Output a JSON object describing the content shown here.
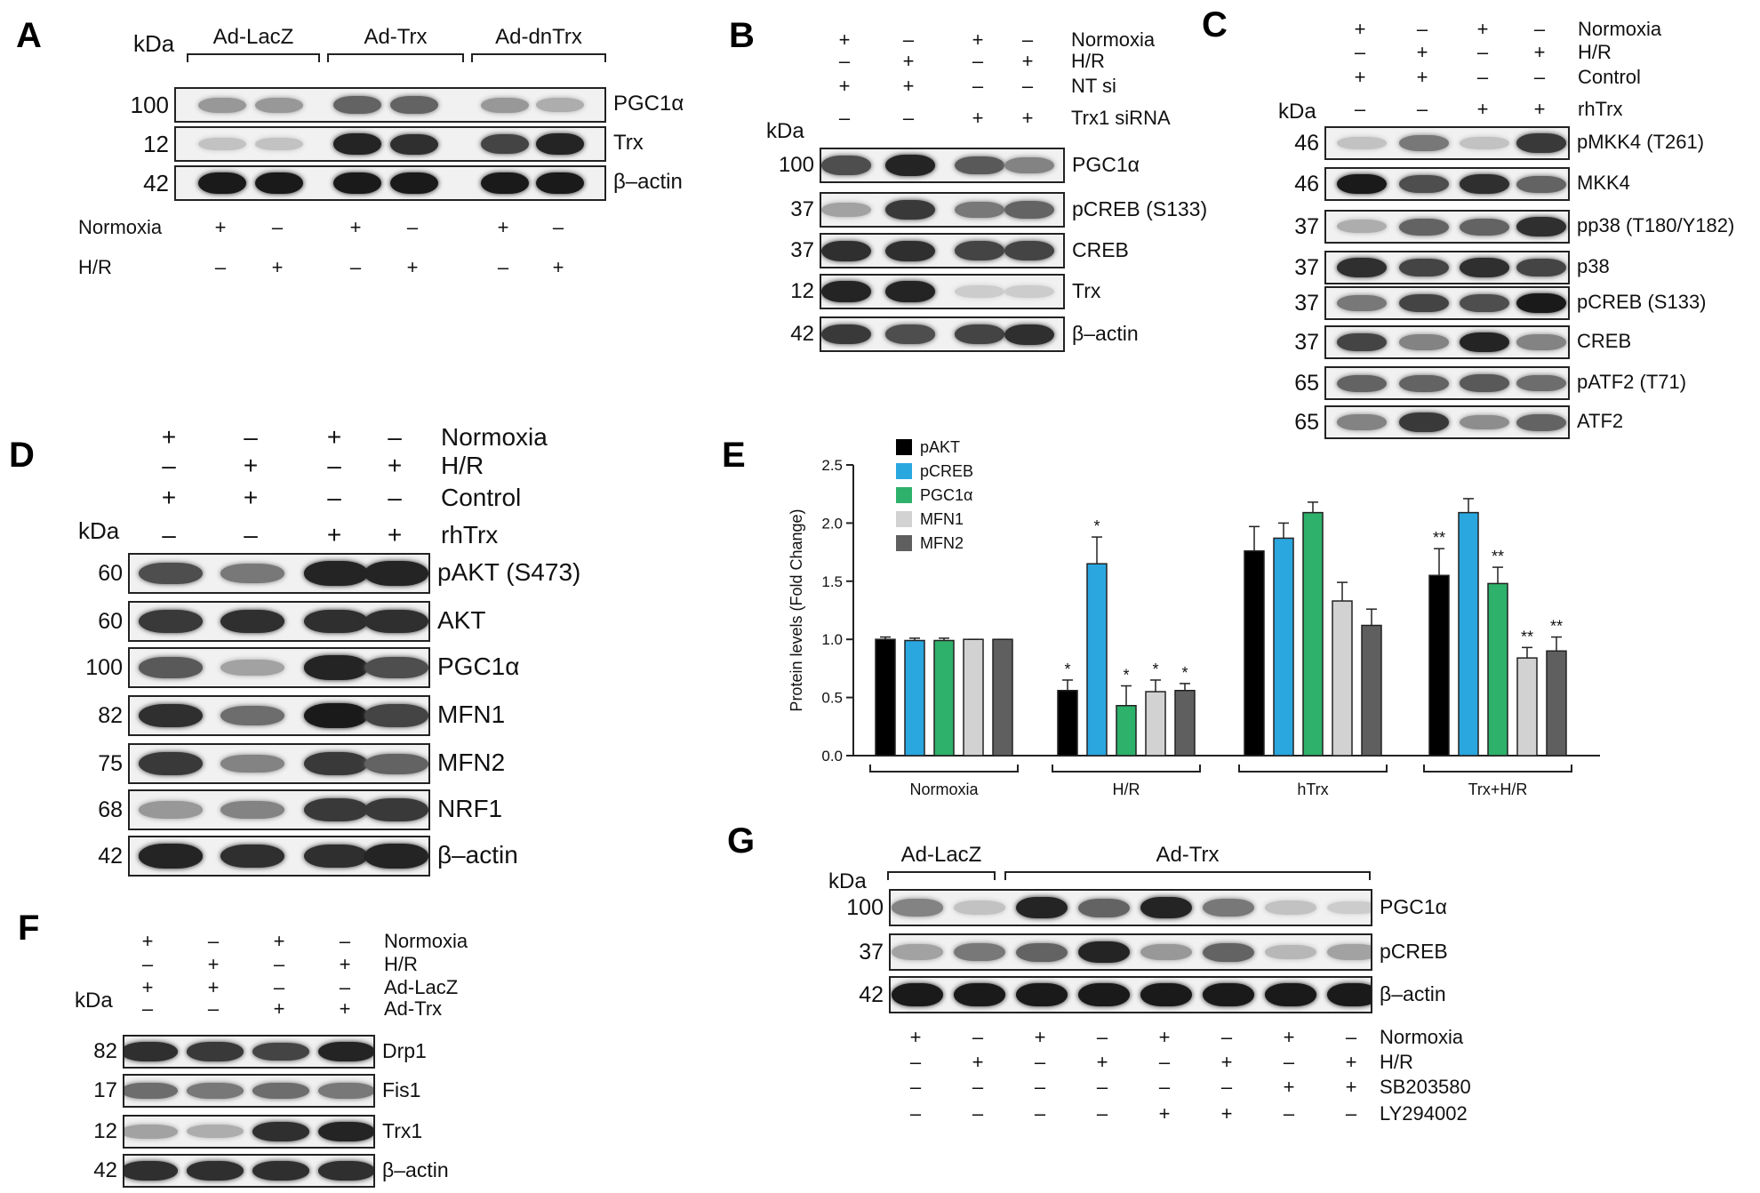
{
  "panels": {
    "A": {
      "label": "A",
      "kda": "kDa",
      "groups": [
        "Ad-LacZ",
        "Ad-Trx",
        "Ad-dnTrx"
      ],
      "rows": [
        {
          "name": "PGC1α",
          "mw": "100",
          "levels": [
            0.35,
            0.35,
            0.6,
            0.6,
            0.35,
            0.25
          ]
        },
        {
          "name": "Trx",
          "mw": "12",
          "levels": [
            0.15,
            0.15,
            0.9,
            0.85,
            0.75,
            0.9
          ]
        },
        {
          "name": "β–actin",
          "mw": "42",
          "levels": [
            0.95,
            0.95,
            0.95,
            0.95,
            0.95,
            0.95
          ]
        }
      ],
      "conditions": [
        {
          "name": "Normoxia",
          "signs": [
            "+",
            "–",
            "+",
            "–",
            "+",
            "–"
          ]
        },
        {
          "name": "H/R",
          "signs": [
            "–",
            "+",
            "–",
            "+",
            "–",
            "+"
          ]
        }
      ]
    },
    "B": {
      "label": "B",
      "kda": "kDa",
      "conditions": [
        {
          "name": "Normoxia",
          "signs": [
            "+",
            "–",
            "+",
            "–"
          ]
        },
        {
          "name": "H/R",
          "signs": [
            "–",
            "+",
            "–",
            "+"
          ]
        },
        {
          "name": "NT si",
          "signs": [
            "+",
            "+",
            "–",
            "–"
          ]
        },
        {
          "name": "Trx1 siRNA",
          "signs": [
            "–",
            "–",
            "+",
            "+"
          ]
        }
      ],
      "rows": [
        {
          "name": "PGC1α",
          "mw": "100",
          "levels": [
            0.7,
            0.9,
            0.65,
            0.45
          ]
        },
        {
          "name": "pCREB (S133)",
          "mw": "37",
          "levels": [
            0.3,
            0.8,
            0.5,
            0.6
          ]
        },
        {
          "name": "CREB",
          "mw": "37",
          "levels": [
            0.85,
            0.85,
            0.75,
            0.75
          ]
        },
        {
          "name": "Trx",
          "mw": "12",
          "levels": [
            0.9,
            0.9,
            0.1,
            0.1
          ]
        },
        {
          "name": "β–actin",
          "mw": "42",
          "levels": [
            0.8,
            0.7,
            0.75,
            0.85
          ]
        }
      ]
    },
    "C": {
      "label": "C",
      "kda": "kDa",
      "conditions": [
        {
          "name": "Normoxia",
          "signs": [
            "+",
            "–",
            "+",
            "–"
          ]
        },
        {
          "name": "H/R",
          "signs": [
            "–",
            "+",
            "–",
            "+"
          ]
        },
        {
          "name": "Control",
          "signs": [
            "+",
            "+",
            "–",
            "–"
          ]
        },
        {
          "name": "rhTrx",
          "signs": [
            "–",
            "–",
            "+",
            "+"
          ]
        }
      ],
      "rows": [
        {
          "name": "pMKK4 (T261)",
          "mw": "46",
          "levels": [
            0.15,
            0.5,
            0.15,
            0.8
          ]
        },
        {
          "name": "MKK4",
          "mw": "46",
          "levels": [
            0.95,
            0.7,
            0.85,
            0.6
          ]
        },
        {
          "name": "pp38 (T180/Y182)",
          "mw": "37",
          "levels": [
            0.25,
            0.6,
            0.6,
            0.85
          ]
        },
        {
          "name": "p38",
          "mw": "37",
          "levels": [
            0.85,
            0.75,
            0.85,
            0.75
          ]
        },
        {
          "name": "pCREB (S133)",
          "mw": "37",
          "levels": [
            0.5,
            0.75,
            0.7,
            0.95
          ]
        },
        {
          "name": "CREB",
          "mw": "37",
          "levels": [
            0.75,
            0.45,
            0.9,
            0.45
          ]
        },
        {
          "name": "pATF2 (T71)",
          "mw": "65",
          "levels": [
            0.6,
            0.6,
            0.65,
            0.55
          ]
        },
        {
          "name": "ATF2",
          "mw": "65",
          "levels": [
            0.45,
            0.8,
            0.4,
            0.6
          ]
        }
      ]
    },
    "D": {
      "label": "D",
      "kda": "kDa",
      "conditions": [
        {
          "name": "Normoxia",
          "signs": [
            "+",
            "–",
            "+",
            "–"
          ]
        },
        {
          "name": "H/R",
          "signs": [
            "–",
            "+",
            "–",
            "+"
          ]
        },
        {
          "name": "Control",
          "signs": [
            "+",
            "+",
            "–",
            "–"
          ]
        },
        {
          "name": "rhTrx",
          "signs": [
            "–",
            "–",
            "+",
            "+"
          ]
        }
      ],
      "rows": [
        {
          "name": "pAKT (S473)",
          "mw": "60",
          "levels": [
            0.7,
            0.5,
            0.9,
            0.9
          ]
        },
        {
          "name": "AKT",
          "mw": "60",
          "levels": [
            0.8,
            0.85,
            0.85,
            0.85
          ]
        },
        {
          "name": "PGC1α",
          "mw": "100",
          "levels": [
            0.65,
            0.3,
            0.9,
            0.7
          ]
        },
        {
          "name": "MFN1",
          "mw": "82",
          "levels": [
            0.85,
            0.55,
            0.95,
            0.75
          ]
        },
        {
          "name": "MFN2",
          "mw": "75",
          "levels": [
            0.8,
            0.45,
            0.8,
            0.6
          ]
        },
        {
          "name": "NRF1",
          "mw": "68",
          "levels": [
            0.35,
            0.45,
            0.8,
            0.8
          ]
        },
        {
          "name": "β–actin",
          "mw": "42",
          "levels": [
            0.9,
            0.85,
            0.85,
            0.9
          ]
        }
      ]
    },
    "E": {
      "label": "E"
    },
    "F": {
      "label": "F",
      "kda": "kDa",
      "conditions": [
        {
          "name": "Normoxia",
          "signs": [
            "+",
            "–",
            "+",
            "–"
          ]
        },
        {
          "name": "H/R",
          "signs": [
            "–",
            "+",
            "–",
            "+"
          ]
        },
        {
          "name": "Ad-LacZ",
          "signs": [
            "+",
            "+",
            "–",
            "–"
          ]
        },
        {
          "name": "Ad-Trx",
          "signs": [
            "–",
            "–",
            "+",
            "+"
          ]
        }
      ],
      "rows": [
        {
          "name": "Drp1",
          "mw": "82",
          "levels": [
            0.85,
            0.8,
            0.75,
            0.9
          ]
        },
        {
          "name": "Fis1",
          "mw": "17",
          "levels": [
            0.55,
            0.5,
            0.55,
            0.5
          ]
        },
        {
          "name": "Trx1",
          "mw": "12",
          "levels": [
            0.3,
            0.25,
            0.85,
            0.9
          ]
        },
        {
          "name": "β–actin",
          "mw": "42",
          "levels": [
            0.85,
            0.85,
            0.85,
            0.85
          ]
        }
      ]
    },
    "G": {
      "label": "G",
      "kda": "kDa",
      "groups": [
        "Ad-LacZ",
        "Ad-Trx"
      ],
      "rows": [
        {
          "name": "PGC1α",
          "mw": "100",
          "levels": [
            0.45,
            0.15,
            0.9,
            0.6,
            0.9,
            0.5,
            0.15,
            0.1
          ]
        },
        {
          "name": "pCREB",
          "mw": "37",
          "levels": [
            0.3,
            0.5,
            0.6,
            0.9,
            0.35,
            0.6,
            0.2,
            0.3
          ]
        },
        {
          "name": "β–actin",
          "mw": "42",
          "levels": [
            0.95,
            0.95,
            0.95,
            0.95,
            0.95,
            0.95,
            0.95,
            0.95
          ]
        }
      ],
      "conditions": [
        {
          "name": "Normoxia",
          "signs": [
            "+",
            "–",
            "+",
            "–",
            "+",
            "–",
            "+",
            "–"
          ]
        },
        {
          "name": "H/R",
          "signs": [
            "–",
            "+",
            "–",
            "+",
            "–",
            "+",
            "–",
            "+"
          ]
        },
        {
          "name": "SB203580",
          "signs": [
            "–",
            "–",
            "–",
            "–",
            "–",
            "–",
            "+",
            "+"
          ]
        },
        {
          "name": "LY294002",
          "signs": [
            "–",
            "–",
            "–",
            "–",
            "+",
            "+",
            "–",
            "–"
          ]
        }
      ]
    }
  },
  "chart_data": {
    "type": "bar",
    "ylabel": "Protein levels (Fold Change)",
    "ylim": [
      0,
      2.5
    ],
    "yticks": [
      "0.0",
      "0.5",
      "1.0",
      "1.5",
      "2.0",
      "2.5"
    ],
    "categories": [
      "Normoxia",
      "H/R",
      "hTrx",
      "Trx+H/R"
    ],
    "legend_position": "top-left",
    "series": [
      {
        "name": "pAKT",
        "color": "#000000",
        "values": [
          1.0,
          0.56,
          1.76,
          1.55
        ],
        "errors": [
          0.02,
          0.09,
          0.21,
          0.23
        ],
        "marks": [
          "",
          "*",
          "",
          "**"
        ]
      },
      {
        "name": "pCREB",
        "color": "#2aa7df",
        "values": [
          0.99,
          1.65,
          1.87,
          2.09
        ],
        "errors": [
          0.02,
          0.23,
          0.13,
          0.12
        ],
        "marks": [
          "",
          "*",
          "",
          ""
        ]
      },
      {
        "name": "PGC1α",
        "color": "#2eb16b",
        "values": [
          0.99,
          0.43,
          2.09,
          1.48
        ],
        "errors": [
          0.02,
          0.17,
          0.09,
          0.14
        ],
        "marks": [
          "",
          "*",
          "",
          "**"
        ]
      },
      {
        "name": "MFN1",
        "color": "#d2d2d2",
        "values": [
          1.0,
          0.55,
          1.33,
          0.84
        ],
        "errors": [
          0.0,
          0.1,
          0.16,
          0.09
        ],
        "marks": [
          "",
          "*",
          "",
          "**"
        ]
      },
      {
        "name": "MFN2",
        "color": "#5f5f5f",
        "values": [
          1.0,
          0.56,
          1.12,
          0.9
        ],
        "errors": [
          0.0,
          0.06,
          0.14,
          0.12
        ],
        "marks": [
          "",
          "*",
          "",
          "**"
        ]
      }
    ]
  }
}
